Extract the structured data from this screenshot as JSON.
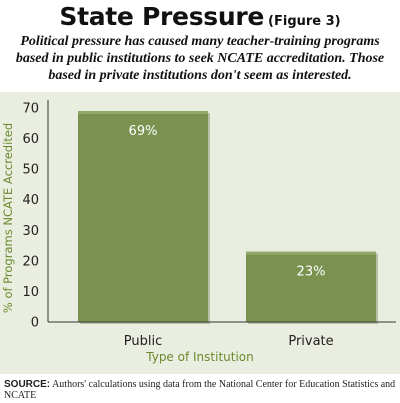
{
  "header": {
    "title": "State Pressure",
    "figure_label": "(Figure 3)",
    "subtitle": "Political pressure has caused many teacher-training programs based in public institutions to seek NCATE accreditation. Those based in private institutions don't seem as interested."
  },
  "chart_data": {
    "type": "bar",
    "categories": [
      "Public",
      "Private"
    ],
    "values": [
      69,
      23
    ],
    "data_labels": [
      "69%",
      "23%"
    ],
    "title": "",
    "xlabel": "Type of Institution",
    "ylabel": "% of Programs NCATE Accredited",
    "ylim": [
      0,
      70
    ],
    "yticks": [
      0,
      10,
      20,
      30,
      40,
      50,
      60,
      70
    ],
    "grid": false,
    "colors": {
      "bar": "#7a9150",
      "bar_top": "#91a86b",
      "axis_label": "#6b8a2e",
      "panel": "#eaeee0"
    }
  },
  "source": {
    "label": "SOURCE:",
    "text": "Authors' calculations using data from the National Center for Education Statistics and NCATE"
  }
}
